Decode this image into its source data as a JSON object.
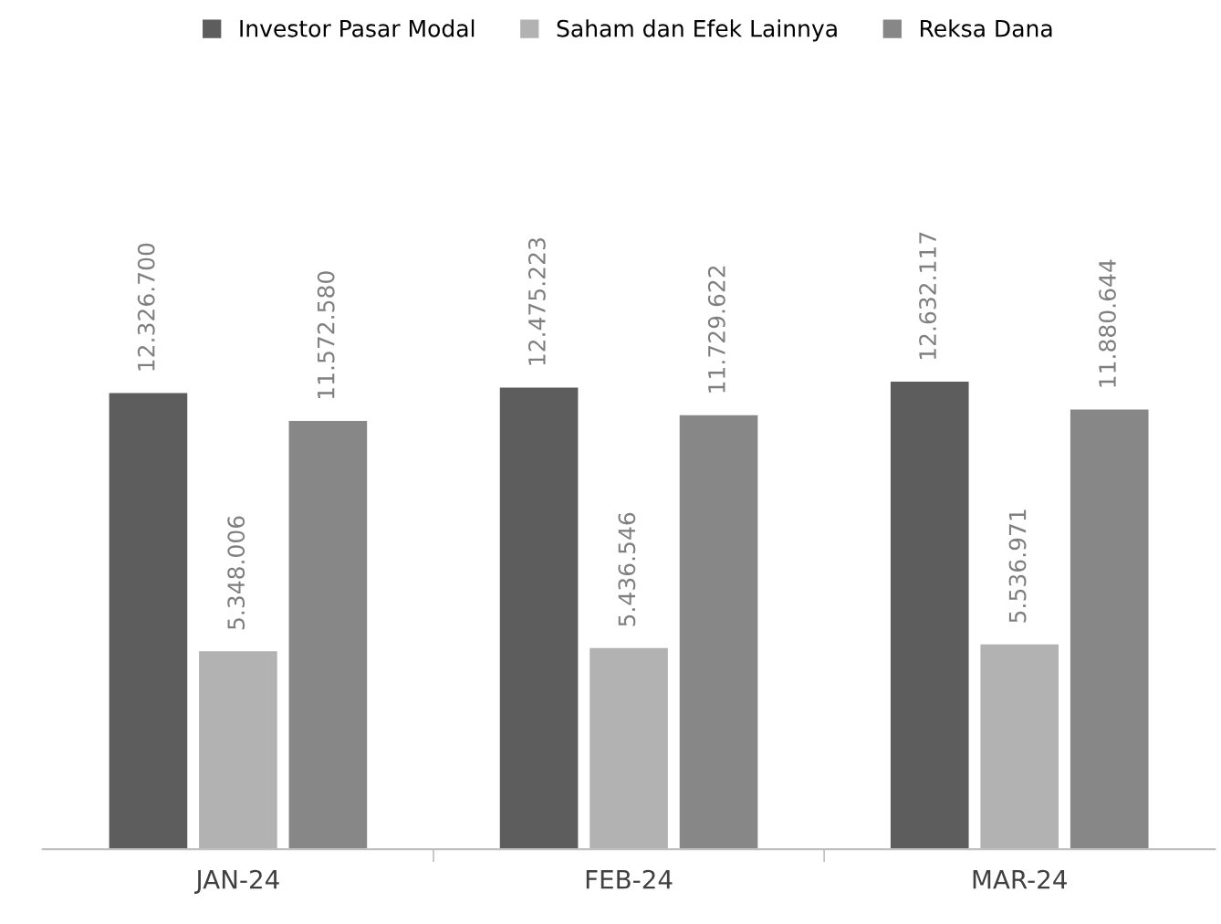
{
  "chart_data": {
    "type": "bar",
    "categories": [
      "JAN-24",
      "FEB-24",
      "MAR-24"
    ],
    "series": [
      {
        "name": "Investor Pasar Modal",
        "color": "#5d5d5d",
        "values": [
          12326700,
          12475223,
          12632117
        ],
        "value_labels": [
          "12.326.700",
          "12.475.223",
          "12.632.117"
        ]
      },
      {
        "name": "Saham dan Efek Lainnya",
        "color": "#b2b2b2",
        "values": [
          5348006,
          5436546,
          5536971
        ],
        "value_labels": [
          "5.348.006",
          "5.436.546",
          "5.536.971"
        ]
      },
      {
        "name": "Reksa Dana",
        "color": "#878787",
        "values": [
          11572580,
          11729622,
          11880644
        ],
        "value_labels": [
          "11.572.580",
          "11.729.622",
          "11.880.644"
        ]
      }
    ],
    "legend": "top",
    "grid": false
  }
}
